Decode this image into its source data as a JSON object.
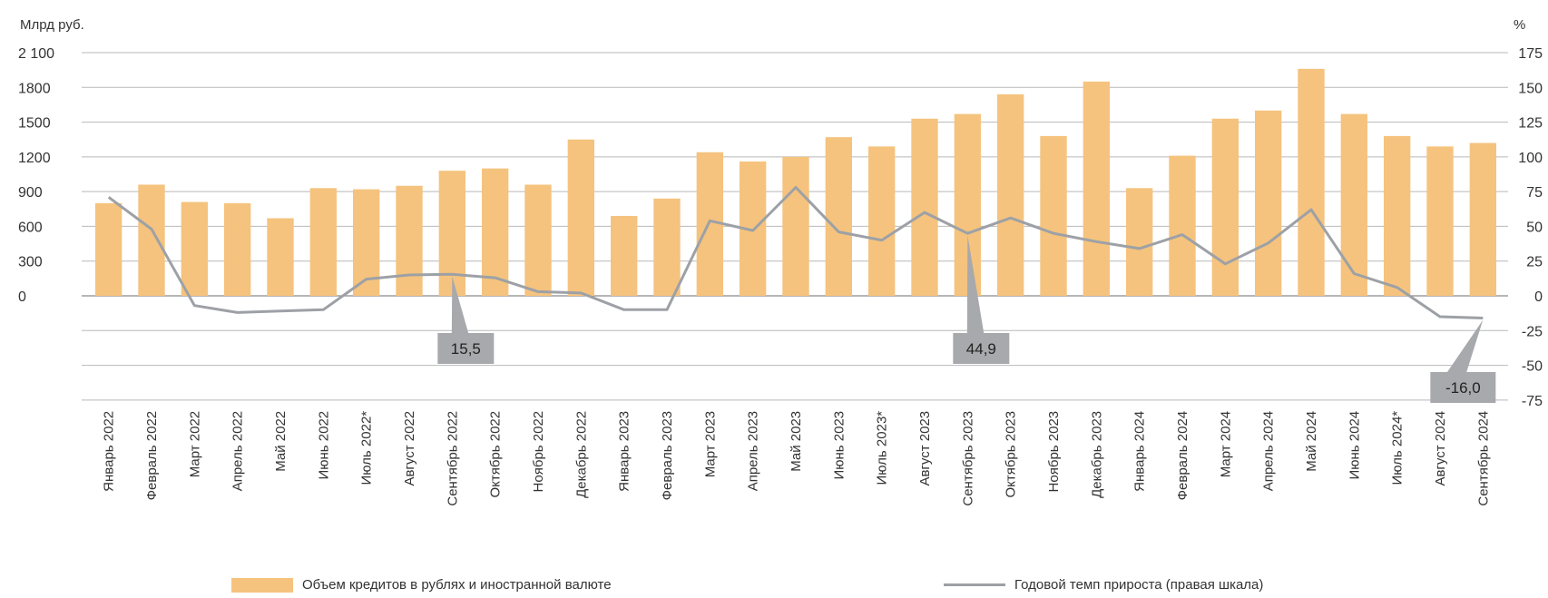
{
  "chart_data": {
    "type": "bar",
    "ylabel_left": "Млрд руб.",
    "ylabel_right": "%",
    "ylim_left": [
      0,
      2100
    ],
    "yticks_left": [
      "2 100",
      "1800",
      "1500",
      "1200",
      "900",
      "600",
      "300",
      "0"
    ],
    "ylim_right": [
      -75,
      175
    ],
    "yticks_right": [
      "175",
      "150",
      "125",
      "100",
      "75",
      "50",
      "25",
      "0",
      "-25",
      "-50",
      "-75"
    ],
    "categories": [
      "Январь 2022",
      "Февраль 2022",
      "Март 2022",
      "Апрель 2022",
      "Май 2022",
      "Июнь 2022",
      "Июль 2022*",
      "Август 2022",
      "Сентябрь 2022",
      "Октябрь 2022",
      "Ноябрь 2022",
      "Декабрь 2022",
      "Январь 2023",
      "Февраль 2023",
      "Март 2023",
      "Апрель 2023",
      "Май 2023",
      "Июнь 2023",
      "Июль 2023*",
      "Август 2023",
      "Сентябрь 2023",
      "Октябрь 2023",
      "Ноябрь 2023",
      "Декабрь 2023",
      "Январь 2024",
      "Февраль 2024",
      "Март 2024",
      "Апрель 2024",
      "Май 2024",
      "Июнь 2024",
      "Июль 2024*",
      "Август 2024",
      "Сентябрь 2024"
    ],
    "series": [
      {
        "name": "Объем кредитов в рублях и иностранной валюте",
        "axis": "left",
        "type": "bar",
        "color": "#F5C37E",
        "values": [
          800,
          960,
          810,
          800,
          670,
          930,
          920,
          950,
          1080,
          1100,
          960,
          1350,
          690,
          840,
          1240,
          1160,
          1200,
          1370,
          1290,
          1530,
          1570,
          1740,
          1380,
          1850,
          930,
          1210,
          1530,
          1600,
          1960,
          1570,
          1380,
          1290,
          1320
        ]
      },
      {
        "name": "Годовой темп прироста (правая шкала)",
        "axis": "right",
        "type": "line",
        "color": "#9DA1A6",
        "values": [
          71,
          48,
          -7,
          -12,
          -11,
          -10,
          12,
          15,
          15.5,
          13,
          3,
          2,
          -10,
          -10,
          54,
          47,
          78,
          46,
          40,
          60,
          44.9,
          56,
          45,
          39,
          34,
          44,
          23,
          38,
          62,
          16,
          6,
          -15,
          -16
        ]
      }
    ],
    "annotations": [
      {
        "label": "15,5",
        "index": 8
      },
      {
        "label": "44,9",
        "index": 20
      },
      {
        "label": "-16,0",
        "index": 32
      }
    ],
    "grid": true,
    "legend_position": "bottom"
  }
}
